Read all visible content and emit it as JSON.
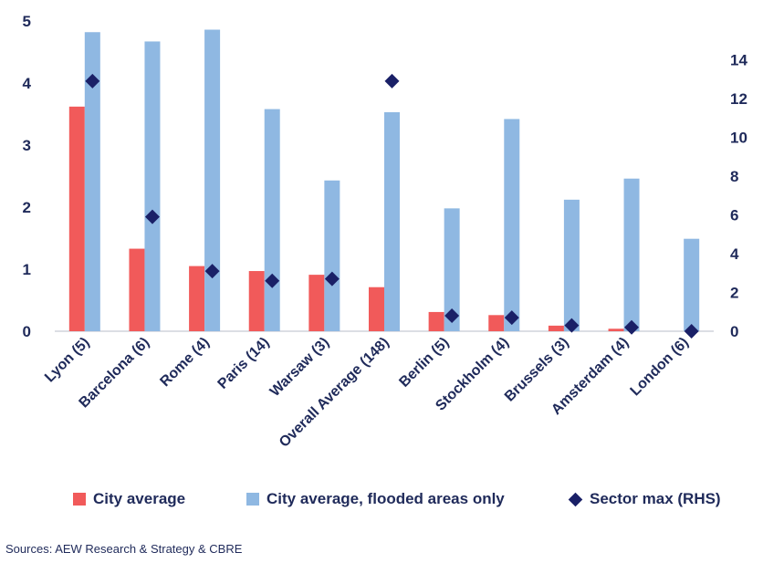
{
  "chart_data": {
    "type": "bar",
    "categories": [
      "Lyon (5)",
      "Barcelona (6)",
      "Rome (4)",
      "Paris (14)",
      "Warsaw (3)",
      "Overall Average (148)",
      "Berlin (5)",
      "Stockholm (4)",
      "Brussels (3)",
      "Amsterdam (4)",
      "London (6)"
    ],
    "series": [
      {
        "name": "City average",
        "kind": "bar",
        "axis": "left",
        "color": "#f15a5a",
        "values": [
          3.62,
          1.33,
          1.05,
          0.97,
          0.91,
          0.71,
          0.31,
          0.26,
          0.09,
          0.04,
          0.0
        ]
      },
      {
        "name": "City average, flooded areas only",
        "kind": "bar",
        "axis": "left",
        "color": "#8fb8e2",
        "values": [
          4.82,
          4.67,
          4.86,
          3.58,
          2.43,
          3.53,
          1.98,
          3.42,
          2.12,
          2.46,
          1.49
        ]
      },
      {
        "name": "Sector max (RHS)",
        "kind": "diamond",
        "axis": "right",
        "color": "#1a2067",
        "values": [
          12.9,
          5.9,
          3.1,
          2.6,
          2.7,
          12.9,
          0.8,
          0.7,
          0.3,
          0.2,
          0.0
        ]
      }
    ],
    "ylim": [
      0,
      5
    ],
    "y_ticks": [
      0,
      1,
      2,
      3,
      4,
      5
    ],
    "y2lim": [
      0,
      16
    ],
    "y2_ticks": [
      0,
      2,
      4,
      6,
      8,
      10,
      12,
      14
    ],
    "grid": false,
    "legend_position": "bottom",
    "source": "Sources: AEW Research & Strategy & CBRE"
  }
}
